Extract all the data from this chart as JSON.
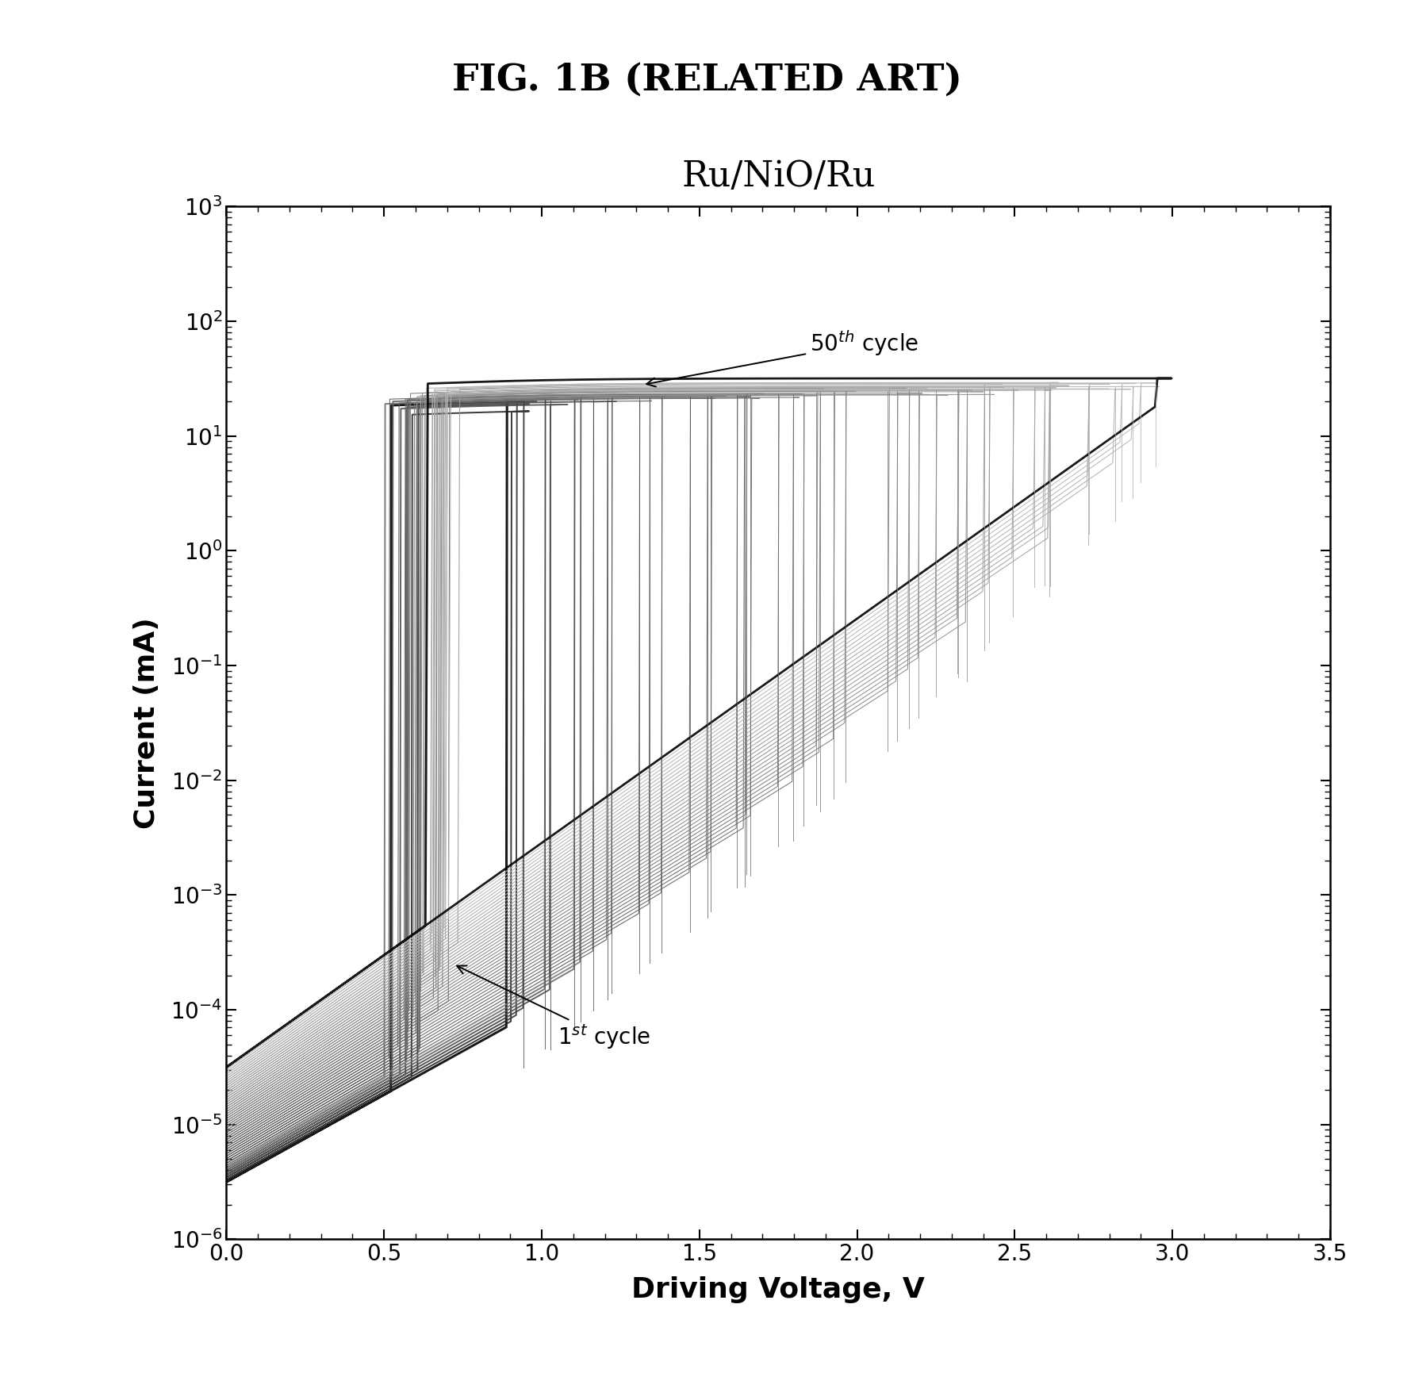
{
  "title_fig": "FIG. 1B (RELATED ART)",
  "plot_title": "Ru/NiO/Ru",
  "xlabel": "Driving Voltage, V",
  "ylabel": "Current (mA)",
  "xlim": [
    0.0,
    3.5
  ],
  "ylim_log": [
    -6,
    3
  ],
  "xticks": [
    0.0,
    0.5,
    1.0,
    1.5,
    2.0,
    2.5,
    3.0,
    3.5
  ],
  "background_color": "#ffffff",
  "num_cycles": 50
}
